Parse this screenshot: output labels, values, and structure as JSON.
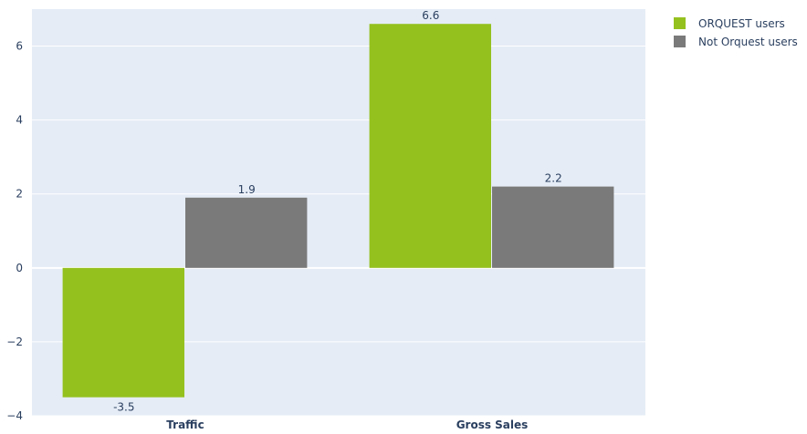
{
  "chart_data": {
    "type": "bar",
    "categories": [
      "Traffic",
      "Gross Sales"
    ],
    "series": [
      {
        "name": "ORQUEST users",
        "values": [
          -3.5,
          6.6
        ],
        "color": "#95c11f"
      },
      {
        "name": "Not Orquest users",
        "values": [
          1.9,
          2.2
        ],
        "color": "#7a7a7a"
      }
    ],
    "data_labels": [
      [
        "-3.5",
        "6.6"
      ],
      [
        "1.9",
        "2.2"
      ]
    ],
    "title": "",
    "xlabel": "",
    "ylabel": "",
    "ylim": [
      -4,
      7
    ],
    "yticks": [
      -4,
      -2,
      0,
      2,
      4,
      6
    ],
    "ytick_labels": [
      "−4",
      "−2",
      "0",
      "2",
      "4",
      "6"
    ],
    "grid": true,
    "legend_position": "top-right",
    "plot_background": "#e5ecf6"
  }
}
